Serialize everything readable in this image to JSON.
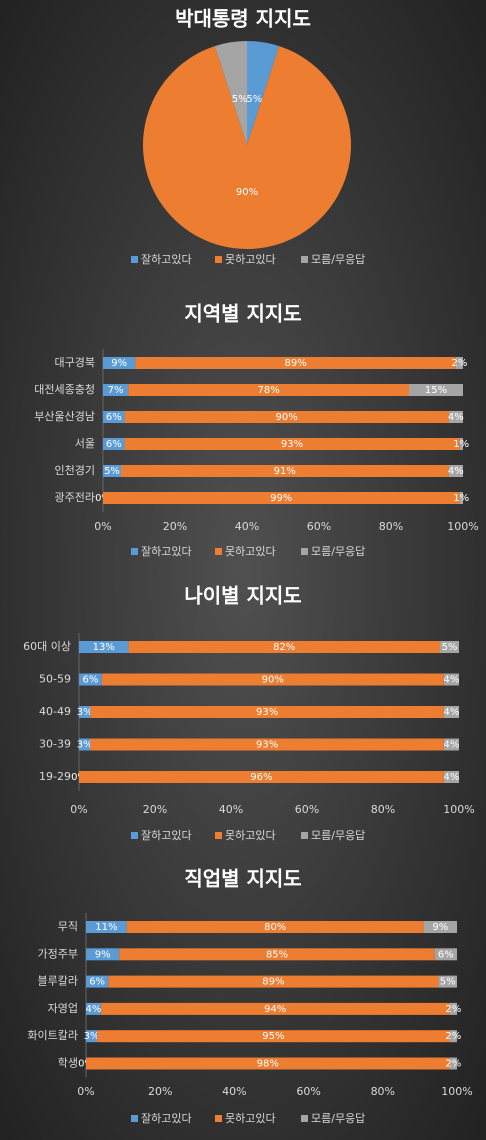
{
  "chart_data": [
    {
      "type": "pie",
      "title": "박대통령 지지도",
      "categories": [
        "잘하고있다",
        "못하고있다",
        "모름/무응답"
      ],
      "values": [
        5,
        90,
        5
      ],
      "value_labels": [
        "5%",
        "90%",
        "5%"
      ],
      "colors": [
        "#5b9bd5",
        "#ed7d31",
        "#a5a5a5"
      ],
      "legend": "bottom"
    },
    {
      "type": "stacked_bar",
      "title": "지역별 지지도",
      "categories": [
        "대구경북",
        "대전세종충청",
        "부산울산경남",
        "서울",
        "인천경기",
        "광주전라"
      ],
      "series": [
        {
          "name": "잘하고있다",
          "color": "#5b9bd5",
          "values": [
            9,
            7,
            6,
            6,
            5,
            0
          ],
          "value_labels": [
            "9%",
            "7%",
            "6%",
            "6%",
            "5%",
            "0%"
          ]
        },
        {
          "name": "못하고있다",
          "color": "#ed7d31",
          "values": [
            89,
            78,
            90,
            93,
            91,
            99
          ],
          "value_labels": [
            "89%",
            "78%",
            "90%",
            "93%",
            "91%",
            "99%"
          ]
        },
        {
          "name": "모름/무응답",
          "color": "#a5a5a5",
          "values": [
            2,
            15,
            4,
            1,
            4,
            1
          ],
          "value_labels": [
            "2%",
            "15%",
            "4%",
            "1%",
            "4%",
            "1%"
          ]
        }
      ],
      "xlim": [
        0,
        100
      ],
      "xticks": [
        {
          "value": 0,
          "label": "0%"
        },
        {
          "value": 20,
          "label": "20%"
        },
        {
          "value": 40,
          "label": "40%"
        },
        {
          "value": 60,
          "label": "60%"
        },
        {
          "value": 80,
          "label": "80%"
        },
        {
          "value": 100,
          "label": "100%"
        }
      ],
      "legend": "bottom"
    },
    {
      "type": "stacked_bar",
      "title": "나이별 지지도",
      "categories": [
        "60대 이상",
        "50-59",
        "40-49",
        "30-39",
        "19-29"
      ],
      "series": [
        {
          "name": "잘하고있다",
          "color": "#5b9bd5",
          "values": [
            13,
            6,
            3,
            3,
            0
          ],
          "value_labels": [
            "13%",
            "6%",
            "3%",
            "3%",
            "0%"
          ]
        },
        {
          "name": "못하고있다",
          "color": "#ed7d31",
          "values": [
            82,
            90,
            93,
            93,
            96
          ],
          "value_labels": [
            "82%",
            "90%",
            "93%",
            "93%",
            "96%"
          ]
        },
        {
          "name": "모름/무응답",
          "color": "#a5a5a5",
          "values": [
            5,
            4,
            4,
            4,
            4
          ],
          "value_labels": [
            "5%",
            "4%",
            "4%",
            "4%",
            "4%"
          ]
        }
      ],
      "xlim": [
        0,
        100
      ],
      "xticks": [
        {
          "value": 0,
          "label": "0%"
        },
        {
          "value": 20,
          "label": "20%"
        },
        {
          "value": 40,
          "label": "40%"
        },
        {
          "value": 60,
          "label": "60%"
        },
        {
          "value": 80,
          "label": "80%"
        },
        {
          "value": 100,
          "label": "100%"
        }
      ],
      "legend": "bottom"
    },
    {
      "type": "stacked_bar",
      "title": "직업별 지지도",
      "categories": [
        "무직",
        "가정주부",
        "블루칼라",
        "자영업",
        "화이트칼라",
        "학생"
      ],
      "series": [
        {
          "name": "잘하고있다",
          "color": "#5b9bd5",
          "values": [
            11,
            9,
            6,
            4,
            3,
            0
          ],
          "value_labels": [
            "11%",
            "9%",
            "6%",
            "4%",
            "3%",
            "0%"
          ]
        },
        {
          "name": "못하고있다",
          "color": "#ed7d31",
          "values": [
            80,
            85,
            89,
            94,
            95,
            98
          ],
          "value_labels": [
            "80%",
            "85%",
            "89%",
            "94%",
            "95%",
            "98%"
          ]
        },
        {
          "name": "모름/무응답",
          "color": "#a5a5a5",
          "values": [
            9,
            6,
            5,
            2,
            2,
            2
          ],
          "value_labels": [
            "9%",
            "6%",
            "5%",
            "2%",
            "2%",
            "2%"
          ]
        }
      ],
      "xlim": [
        0,
        100
      ],
      "xticks": [
        {
          "value": 0,
          "label": "0%"
        },
        {
          "value": 20,
          "label": "20%"
        },
        {
          "value": 40,
          "label": "40%"
        },
        {
          "value": 60,
          "label": "60%"
        },
        {
          "value": 80,
          "label": "80%"
        },
        {
          "value": 100,
          "label": "100%"
        }
      ],
      "legend": "bottom"
    }
  ]
}
